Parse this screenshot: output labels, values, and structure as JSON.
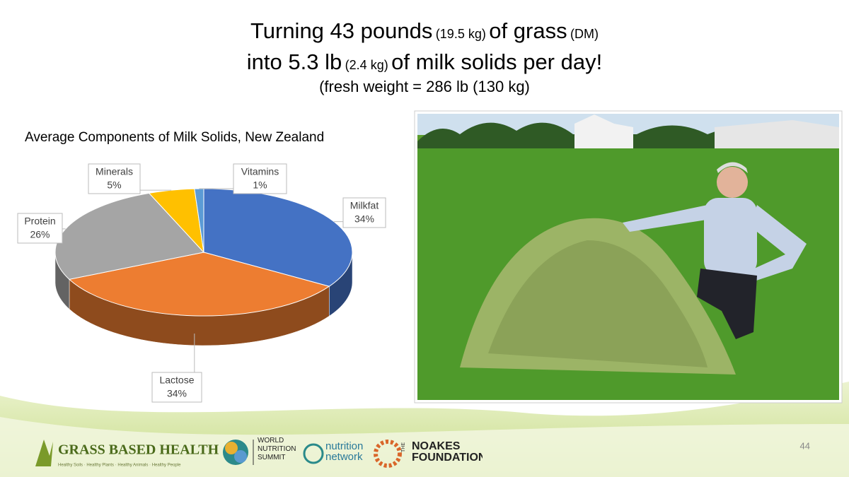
{
  "title": {
    "line1": [
      "Turning 43 pounds",
      "(19.5 kg)",
      "of grass",
      "(DM)"
    ],
    "line2": [
      "into 5.3 lb",
      "(2.4 kg)",
      "of milk solids per day!"
    ],
    "line3": "(fresh weight = 286 lb (130 kg)"
  },
  "chart_data": {
    "type": "pie",
    "title": "Average Components of Milk Solids, New Zealand",
    "categories": [
      "Milkfat",
      "Lactose",
      "Protein",
      "Minerals",
      "Vitamins"
    ],
    "values": [
      34,
      34,
      26,
      5,
      1
    ],
    "value_labels": [
      "34%",
      "34%",
      "26%",
      "5%",
      "1%"
    ],
    "colors": [
      "#4472c4",
      "#ed7d31",
      "#a5a5a5",
      "#ffc000",
      "#5b9bd5"
    ]
  },
  "footer": {
    "logo1": "GRASS BASED HEALTH",
    "logo1_tagline": "Healthy Soils · Healthy Plants · Healthy Animals · Healthy People",
    "logo2": "WORLD NUTRITION SUMMIT",
    "logo3": "nutrition network",
    "logo4_small": "THE",
    "logo4": "NOAKES FOUNDATION",
    "page_number": "44"
  }
}
